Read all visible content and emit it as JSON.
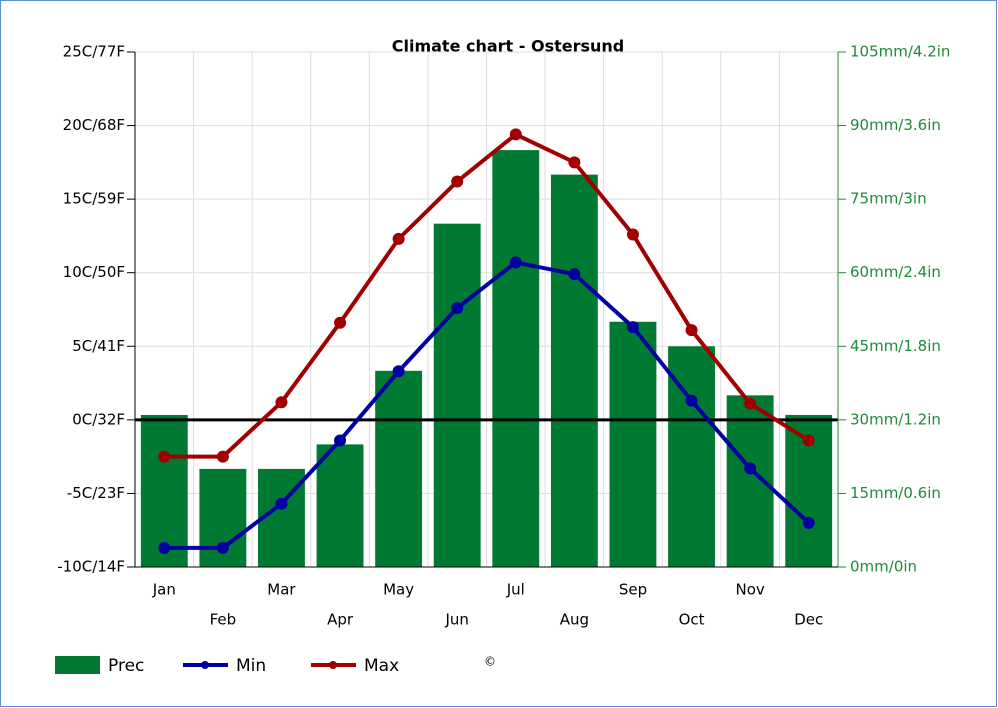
{
  "chart_data": {
    "type": "bar",
    "title": "Climate chart - Ostersund",
    "categories": [
      "Jan",
      "Feb",
      "Mar",
      "Apr",
      "May",
      "Jun",
      "Jul",
      "Aug",
      "Sep",
      "Oct",
      "Nov",
      "Dec"
    ],
    "series": [
      {
        "name": "Prec",
        "type": "bar",
        "axis": "y2",
        "color": "#007a33",
        "values": [
          31,
          20,
          20,
          25,
          40,
          70,
          85,
          80,
          50,
          45,
          35,
          31
        ]
      },
      {
        "name": "Min",
        "type": "line",
        "axis": "y",
        "color": "#0000a0",
        "values": [
          -8.7,
          -8.7,
          -5.7,
          -1.4,
          3.3,
          7.6,
          10.7,
          9.9,
          6.3,
          1.3,
          -3.3,
          -7.0
        ]
      },
      {
        "name": "Max",
        "type": "line",
        "axis": "y",
        "color": "#a00000",
        "values": [
          -2.5,
          -2.5,
          1.2,
          6.6,
          12.3,
          16.2,
          19.4,
          17.5,
          12.6,
          6.1,
          1.1,
          -1.4
        ]
      }
    ],
    "ylim": [
      -10,
      25
    ],
    "yticks": [
      {
        "value": -10,
        "label": "-10C/14F"
      },
      {
        "value": -5,
        "label": "-5C/23F"
      },
      {
        "value": 0,
        "label": "0C/32F"
      },
      {
        "value": 5,
        "label": "5C/41F"
      },
      {
        "value": 10,
        "label": "10C/50F"
      },
      {
        "value": 15,
        "label": "15C/59F"
      },
      {
        "value": 20,
        "label": "20C/68F"
      },
      {
        "value": 25,
        "label": "25C/77F"
      }
    ],
    "y2lim": [
      0,
      105
    ],
    "y2ticks": [
      {
        "value": 0,
        "label": "0mm/0in"
      },
      {
        "value": 15,
        "label": "15mm/0.6in"
      },
      {
        "value": 30,
        "label": "30mm/1.2in"
      },
      {
        "value": 45,
        "label": "45mm/1.8in"
      },
      {
        "value": 60,
        "label": "60mm/2.4in"
      },
      {
        "value": 75,
        "label": "75mm/3in"
      },
      {
        "value": 90,
        "label": "90mm/3.6in"
      },
      {
        "value": 105,
        "label": "105mm/4.2in"
      }
    ],
    "grid": true,
    "legend": "bottom-left",
    "watermark": "©"
  }
}
